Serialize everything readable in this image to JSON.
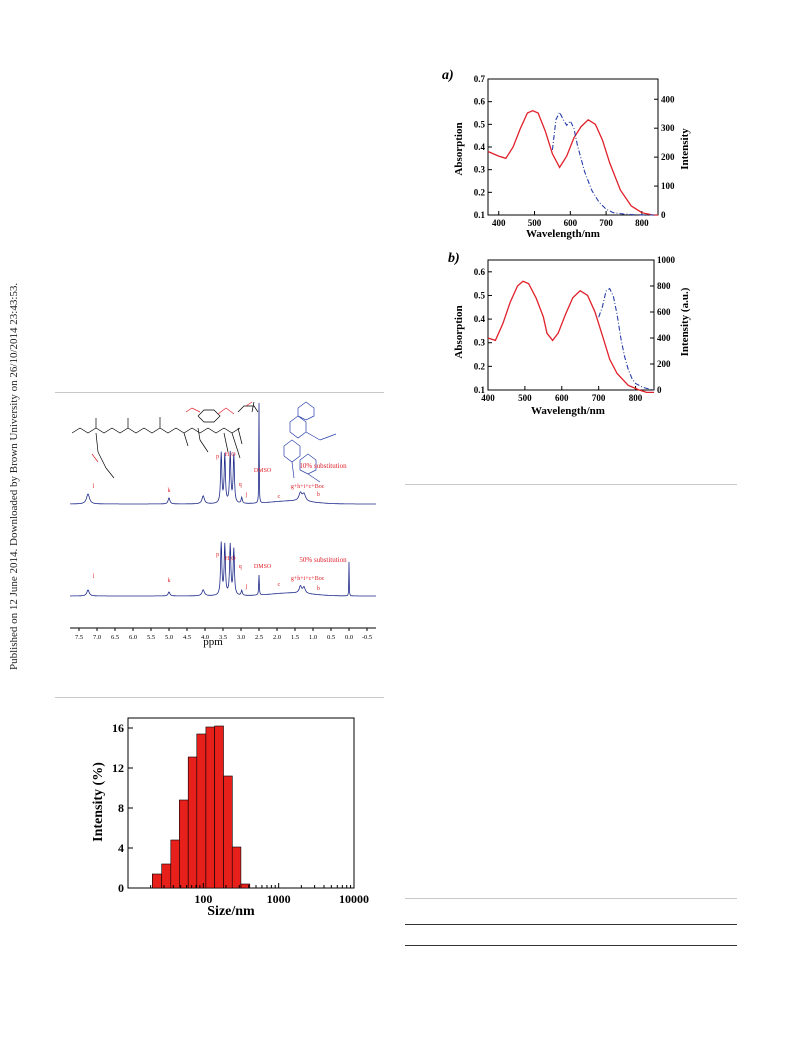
{
  "sidebar": {
    "text": "Published on 12 June 2014. Downloaded by Brown University on 26/10/2014 23:43:53."
  },
  "colors": {
    "absorption": "#e0202a",
    "intensity": "#2a3fa8",
    "nmr": "#1f2a8a",
    "nmr_label": "#e0202a",
    "bar_fill": "#e8201c",
    "rule": "#c8c8c8"
  },
  "panel_a": {
    "tag": "a)",
    "xlabel": "Wavelength/nm",
    "ylabel_left": "Absorption",
    "ylabel_right": "Intensity",
    "x_ticks": [
      "400",
      "500",
      "600",
      "700",
      "800"
    ],
    "y_left_ticks": [
      "0.1",
      "0.2",
      "0.3",
      "0.4",
      "0.5",
      "0.6",
      "0.7"
    ],
    "y_right_ticks": [
      "0",
      "100",
      "200",
      "300",
      "400"
    ]
  },
  "panel_b": {
    "tag": "b)",
    "xlabel": "Wavelength/nm",
    "ylabel_left": "Absorption",
    "ylabel_right": "Intensity (a.u.)",
    "x_ticks": [
      "400",
      "500",
      "600",
      "700",
      "800"
    ],
    "y_left_ticks": [
      "0.1",
      "0.2",
      "0.3",
      "0.4",
      "0.5",
      "0.6"
    ],
    "y_right_ticks": [
      "0",
      "200",
      "400",
      "600",
      "800",
      "1000"
    ]
  },
  "nmr": {
    "xlabel": "ppm",
    "x_ticks": [
      "7.5",
      "7.0",
      "6.5",
      "6.0",
      "5.5",
      "5.0",
      "4.5",
      "4.0",
      "3.5",
      "3.0",
      "2.5",
      "2.0",
      "1.5",
      "1.0",
      "0.5",
      "0.0",
      "-0.5"
    ],
    "spectrum1_label": "10% substitution",
    "spectrum2_label": "50% substitution",
    "peak_labels_top": [
      "l",
      "k",
      "p",
      "H₂O",
      "q",
      "j",
      "DMSO",
      "c",
      "g+h+i+c+Boc",
      "b"
    ],
    "peak_labels_bottom": [
      "l",
      "k",
      "p",
      "H₂O",
      "q",
      "j",
      "DMSO",
      "c",
      "g+h+i+c+Boc",
      "b"
    ]
  },
  "dls": {
    "xlabel": "Size/nm",
    "ylabel": "Intensity (%)",
    "x_ticks": [
      "100",
      "1000",
      "10000"
    ],
    "y_ticks": [
      "0",
      "4",
      "8",
      "12",
      "16"
    ]
  },
  "chart_data": [
    {
      "type": "line",
      "panel": "a)",
      "xlabel": "Wavelength/nm",
      "ylabel": "Absorption",
      "ylabel_right": "Intensity",
      "xlim": [
        370,
        845
      ],
      "ylim": [
        0.1,
        0.7
      ],
      "ylim_right": [
        0,
        470
      ],
      "series": [
        {
          "axis": "left",
          "style": "solid-red",
          "x": [
            370,
            400,
            420,
            440,
            460,
            480,
            495,
            510,
            530,
            550,
            570,
            590,
            610,
            630,
            650,
            670,
            690,
            710,
            740,
            770,
            800,
            830,
            845
          ],
          "y": [
            0.38,
            0.36,
            0.35,
            0.4,
            0.48,
            0.55,
            0.56,
            0.55,
            0.47,
            0.37,
            0.31,
            0.36,
            0.44,
            0.49,
            0.52,
            0.5,
            0.43,
            0.33,
            0.21,
            0.14,
            0.11,
            0.1,
            0.1
          ]
        },
        {
          "axis": "right",
          "style": "dash-dot-blue",
          "x": [
            550,
            560,
            570,
            580,
            590,
            600,
            610,
            620,
            640,
            660,
            680,
            700,
            720,
            750,
            780,
            810,
            840
          ],
          "y": [
            225,
            330,
            355,
            330,
            310,
            325,
            300,
            240,
            150,
            85,
            45,
            20,
            8,
            3,
            1,
            0,
            0
          ]
        }
      ]
    },
    {
      "type": "line",
      "panel": "b)",
      "xlabel": "Wavelength/nm",
      "ylabel": "Absorption",
      "ylabel_right": "Intensity (a.u.)",
      "xlim": [
        400,
        850
      ],
      "ylim": [
        0.1,
        0.65
      ],
      "ylim_right": [
        0,
        1000
      ],
      "series": [
        {
          "axis": "left",
          "style": "solid-red",
          "x": [
            400,
            420,
            440,
            460,
            480,
            495,
            510,
            530,
            550,
            560,
            575,
            590,
            610,
            630,
            650,
            670,
            690,
            710,
            730,
            750,
            780,
            810,
            830,
            850
          ],
          "y": [
            0.32,
            0.31,
            0.38,
            0.47,
            0.54,
            0.56,
            0.55,
            0.49,
            0.41,
            0.34,
            0.31,
            0.34,
            0.42,
            0.49,
            0.52,
            0.5,
            0.43,
            0.33,
            0.23,
            0.17,
            0.12,
            0.1,
            0.09,
            0.09
          ]
        },
        {
          "axis": "right",
          "style": "dash-dot-blue",
          "x": [
            700,
            710,
            720,
            730,
            740,
            750,
            760,
            770,
            780,
            790,
            800,
            820,
            840,
            850
          ],
          "y": [
            560,
            640,
            760,
            780,
            720,
            580,
            400,
            260,
            160,
            90,
            50,
            20,
            5,
            0
          ]
        }
      ]
    },
    {
      "type": "bar",
      "xlabel": "Size/nm",
      "ylabel": "Intensity (%)",
      "xscale": "log",
      "xlim": [
        10,
        10000
      ],
      "ylim": [
        0,
        17
      ],
      "bins_nm": [
        [
          21,
          28
        ],
        [
          28,
          37
        ],
        [
          37,
          48
        ],
        [
          48,
          63
        ],
        [
          63,
          82
        ],
        [
          82,
          108
        ],
        [
          108,
          141
        ],
        [
          141,
          185
        ],
        [
          185,
          242
        ],
        [
          242,
          316
        ],
        [
          316,
          414
        ]
      ],
      "values": [
        1.4,
        2.4,
        4.8,
        8.8,
        13.1,
        15.4,
        16.1,
        16.2,
        11.2,
        4.1,
        0.4
      ]
    }
  ]
}
